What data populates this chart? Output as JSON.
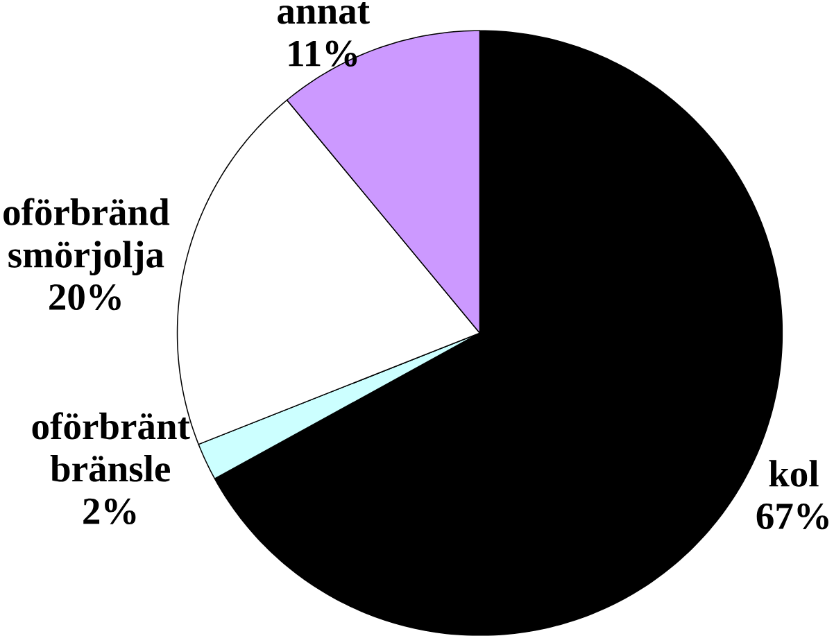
{
  "chart_data": {
    "type": "pie",
    "categories": [
      "kol",
      "oförbränt bränsle",
      "oförbränd smörjolja",
      "annat"
    ],
    "values": [
      67,
      2,
      20,
      11
    ],
    "colors": [
      "#000000",
      "#ccffff",
      "#ffffff",
      "#cc99ff"
    ],
    "value_labels": [
      "67%",
      "2%",
      "20%",
      "11%"
    ]
  }
}
